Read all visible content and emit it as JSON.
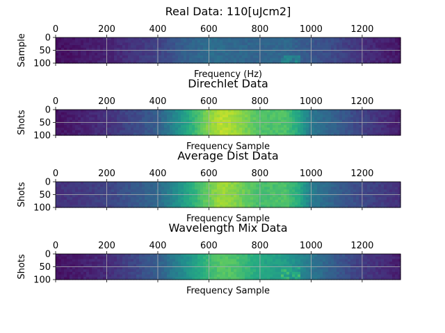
{
  "figure": {
    "colormap": "viridis",
    "grid_color": "#b0b0b0"
  },
  "chart_data": [
    {
      "type": "heatmap",
      "title": "Real Data: 110[uJcm2]",
      "xlabel": "Frequency (Hz)",
      "ylabel": "Sample",
      "xlim": [
        0,
        1350
      ],
      "ylim": [
        0,
        100
      ],
      "x_ticks_top": [
        "0",
        "200",
        "400",
        "600",
        "800",
        "1000",
        "1200"
      ],
      "y_ticks": [
        "0",
        "50",
        "100"
      ],
      "grid": true,
      "x_profile": {
        "x": [
          0,
          200,
          400,
          500,
          600,
          700,
          800,
          900,
          1000,
          1100,
          1200,
          1350
        ],
        "intensity": [
          0.04,
          0.1,
          0.2,
          0.3,
          0.36,
          0.34,
          0.32,
          0.34,
          0.27,
          0.22,
          0.14,
          0.06
        ]
      },
      "features": [
        {
          "x_range": [
            880,
            960
          ],
          "y_range": [
            70,
            95
          ],
          "intensity": 0.5
        }
      ]
    },
    {
      "type": "heatmap",
      "title": "Direchlet Data",
      "xlabel": "Frequency Sample",
      "ylabel": "Shots",
      "xlim": [
        0,
        1350
      ],
      "ylim": [
        0,
        100
      ],
      "x_ticks_top": [
        "0",
        "200",
        "400",
        "600",
        "800",
        "1000",
        "1200"
      ],
      "y_ticks": [
        "0",
        "50",
        "100"
      ],
      "grid": true,
      "x_profile": {
        "x": [
          0,
          200,
          400,
          500,
          600,
          650,
          700,
          800,
          900,
          950,
          1000,
          1100,
          1200,
          1350
        ],
        "intensity": [
          0.05,
          0.14,
          0.3,
          0.55,
          0.82,
          0.9,
          0.86,
          0.72,
          0.72,
          0.6,
          0.4,
          0.3,
          0.2,
          0.08
        ]
      },
      "features": []
    },
    {
      "type": "heatmap",
      "title": "Average Dist Data",
      "xlabel": "Frequency Sample",
      "ylabel": "Shots",
      "xlim": [
        0,
        1350
      ],
      "ylim": [
        0,
        100
      ],
      "x_ticks_top": [
        "0",
        "200",
        "400",
        "600",
        "800",
        "1000",
        "1200"
      ],
      "y_ticks": [
        "0",
        "50",
        "100"
      ],
      "grid": true,
      "x_profile": {
        "x": [
          0,
          200,
          400,
          500,
          600,
          650,
          700,
          800,
          900,
          950,
          1000,
          1100,
          1200,
          1350
        ],
        "intensity": [
          0.14,
          0.2,
          0.34,
          0.55,
          0.78,
          0.86,
          0.82,
          0.7,
          0.72,
          0.62,
          0.42,
          0.3,
          0.22,
          0.14
        ]
      },
      "features": []
    },
    {
      "type": "heatmap",
      "title": "Wavelength Mix Data",
      "xlabel": "Frequency Sample",
      "ylabel": "Shots",
      "xlim": [
        0,
        1350
      ],
      "ylim": [
        0,
        100
      ],
      "x_ticks_top": [
        "0",
        "200",
        "400",
        "600",
        "800",
        "1000",
        "1200"
      ],
      "y_ticks": [
        "0",
        "50",
        "100"
      ],
      "grid": true,
      "x_profile": {
        "x": [
          0,
          200,
          400,
          500,
          600,
          650,
          700,
          800,
          900,
          1000,
          1100,
          1200,
          1350
        ],
        "intensity": [
          0.05,
          0.12,
          0.3,
          0.48,
          0.68,
          0.74,
          0.72,
          0.6,
          0.55,
          0.4,
          0.28,
          0.18,
          0.08
        ]
      },
      "features": [
        {
          "x_range": [
            880,
            960
          ],
          "y_range": [
            55,
            95
          ],
          "intensity": 0.7
        }
      ]
    }
  ]
}
